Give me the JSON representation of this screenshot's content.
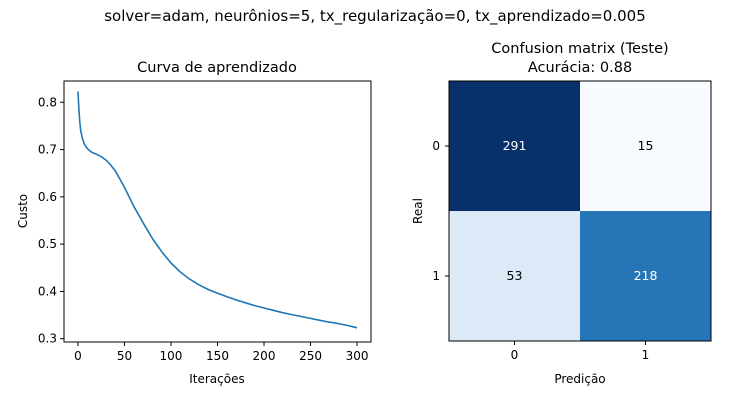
{
  "suptitle": "solver=adam, neurônios=5, tx_regularização=0, tx_aprendizado=0.005",
  "chart_data": [
    {
      "type": "line",
      "title": "Curva de aprendizado",
      "xlabel": "Iterações",
      "ylabel": "Custo",
      "xlim": [
        -15,
        315
      ],
      "ylim": [
        0.293,
        0.845
      ],
      "xticks": [
        0,
        50,
        100,
        150,
        200,
        250,
        300
      ],
      "yticks": [
        0.3,
        0.4,
        0.5,
        0.6,
        0.7,
        0.8
      ],
      "ytick_labels": [
        "0.3",
        "0.4",
        "0.5",
        "0.6",
        "0.7",
        "0.8"
      ],
      "grid": false,
      "color": "#1f77b4",
      "series": [
        {
          "x": [
            0,
            1,
            2,
            3,
            5,
            7,
            10,
            15,
            20,
            25,
            30,
            35,
            40,
            45,
            50,
            60,
            70,
            80,
            90,
            100,
            110,
            120,
            130,
            140,
            150,
            160,
            170,
            180,
            190,
            200,
            210,
            220,
            230,
            240,
            250,
            260,
            270,
            280,
            290,
            300
          ],
          "y": [
            0.823,
            0.785,
            0.758,
            0.74,
            0.722,
            0.711,
            0.702,
            0.694,
            0.69,
            0.685,
            0.678,
            0.668,
            0.655,
            0.638,
            0.62,
            0.58,
            0.545,
            0.512,
            0.484,
            0.46,
            0.441,
            0.426,
            0.414,
            0.404,
            0.396,
            0.389,
            0.382,
            0.376,
            0.37,
            0.365,
            0.36,
            0.355,
            0.351,
            0.347,
            0.343,
            0.339,
            0.335,
            0.332,
            0.328,
            0.323
          ]
        }
      ]
    },
    {
      "type": "heatmap",
      "title": "Confusion matrix (Teste)",
      "subtitle": "Acurácia: 0.88",
      "xlabel": "Predição",
      "ylabel": "Real",
      "x_categories": [
        "0",
        "1"
      ],
      "y_categories": [
        "0",
        "1"
      ],
      "values": [
        [
          291,
          15
        ],
        [
          53,
          218
        ]
      ],
      "colormap": "Blues",
      "text_colors": {
        "dark": "#ffffff",
        "light": "#000000"
      }
    }
  ]
}
